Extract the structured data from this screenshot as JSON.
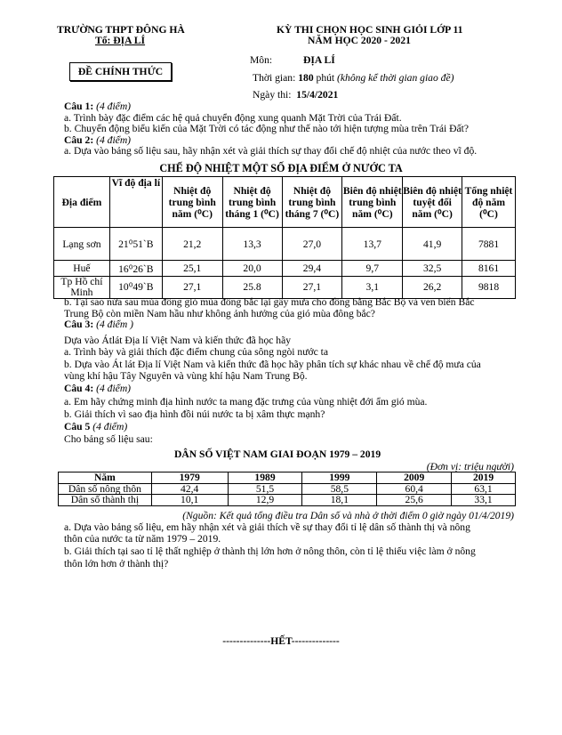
{
  "header": {
    "school": "TRƯỜNG THPT ĐÔNG HÀ",
    "department": "Tổ: ĐỊA LÍ",
    "official_label": "ĐỀ CHÍNH THỨC",
    "exam_title": "KỲ THI CHỌN HỌC SINH GIỎI LỚP 11",
    "school_year": "NĂM HỌC 2020 - 2021",
    "subject_label": "Môn:",
    "subject": "ĐỊA LÍ",
    "time_label": "Thời gian:",
    "time_value": "180",
    "time_unit": "phút",
    "time_note": "(không kể thời gian giao đề)",
    "date_label": "Ngày thi:",
    "date": "15/4/2021"
  },
  "q1": {
    "title": "Câu 1:",
    "points": "(4 điểm)",
    "a": "a. Trình bày đặc điểm các hệ quả chuyển động xung quanh Mặt Trời của Trái Đất.",
    "b": "b. Chuyển động biểu kiến của Mặt Trời có tác động như thế nào tới hiện tượng mùa trên Trái Đất?"
  },
  "q2": {
    "title": "Câu 2:",
    "points": "(4 điểm)",
    "a": "a.  Dựa vào bảng số liệu sau, hãy nhận xét và giải thích sự thay đổi chế độ nhiệt của nước theo vĩ độ.",
    "table_title": "CHẾ ĐỘ NHIỆT MỘT SỐ ĐỊA ĐIỂM Ở NƯỚC TA",
    "headers": [
      "Địa điểm",
      "Vĩ độ địa lí",
      "Nhiệt độ trung bình năm (⁰C)",
      "Nhiệt độ trung bình tháng 1 (⁰C)",
      "Nhiệt độ trung bình tháng 7 (⁰C)",
      "Biên độ nhiệt trung bình năm (⁰C)",
      "Biên độ nhiệt tuyệt đối năm (⁰C)",
      "Tổng nhiệt độ năm (⁰C)"
    ],
    "rows": [
      [
        "Lạng sơn",
        "21⁰51ˋB",
        "21,2",
        "13,3",
        "27,0",
        "13,7",
        "41,9",
        "7881"
      ],
      [
        "Huế",
        "16⁰26ˋB",
        "25,1",
        "20,0",
        "29,4",
        "9,7",
        "32,5",
        "8161"
      ],
      [
        "Tp Hồ chí Minh",
        "10⁰49ˋB",
        "27,1",
        "25.8",
        "27,1",
        "3,1",
        "26,2",
        "9818"
      ]
    ],
    "b1": "b. Tại sao nửa sau mùa đông gió mùa đông bắc lại gây mưa cho đồng bằng Bắc Bộ và ven biển Bắc",
    "b2": "Trung Bộ còn miền Nam hầu như không ảnh hưởng của gió mùa đông bắc?"
  },
  "q3": {
    "title": "Câu 3:",
    "points": "(4 điểm )",
    "intro": "Dựa vào Átlát Địa lí Việt Nam và kiến thức đã học hãy",
    "a": "a. Trình bày và giải thích đặc điểm chung của sông ngòi nước ta",
    "b1": "b. Dựa vào Át lát Địa lí Việt Nam và kiến thức đã học hãy phân tích sự khác nhau về chế độ mưa của",
    "b2": "vùng khí hậu Tây Nguyên và vùng khí hậu Nam Trung Bộ."
  },
  "q4": {
    "title": "Câu 4:",
    "points": "(4 điểm)",
    "a": "a. Em hãy chứng minh địa hình nước ta mang đặc trưng của vùng nhiệt đới ẩm gió mùa.",
    "b": "b. Giải thích vì sao địa hình đồi núi nước ta bị xâm thực mạnh?"
  },
  "q5": {
    "title": "Câu 5",
    "points": "(4 điểm)",
    "intro": "Cho bảng số liệu sau:",
    "table_title": "DÂN SỐ VIỆT NAM GIAI ĐOẠN 1979 – 2019",
    "unit": "(Đơn vị: triệu người)",
    "headers": [
      "Năm",
      "1979",
      "1989",
      "1999",
      "2009",
      "2019"
    ],
    "rows": [
      [
        "Dân số nông thôn",
        "42,4",
        "51,5",
        "58,5",
        "60,4",
        "63,1"
      ],
      [
        "Dân số thành thị",
        "10,1",
        "12,9",
        "18,1",
        "25,6",
        "33,1"
      ]
    ],
    "source": "(Nguồn: Kết quả tổng điều tra Dân số và nhà ở thời điểm 0 giờ ngày 01/4/2019)",
    "a1": "a. Dựa vào bảng số liệu, em hãy nhận xét và giải thích về sự thay đổi tỉ lệ dân số thành thị và nông",
    "a2": "thôn của nước ta từ năm 1979 – 2019.",
    "b1": "b. Giải thích tại sao tỉ lệ thất nghiệp ở thành thị lớn hơn ở nông thôn, còn tỉ lệ thiếu việc làm ở nông",
    "b2": "thôn lớn hơn ở thành thị?"
  },
  "footer": {
    "end": "--------------HẾT--------------"
  }
}
